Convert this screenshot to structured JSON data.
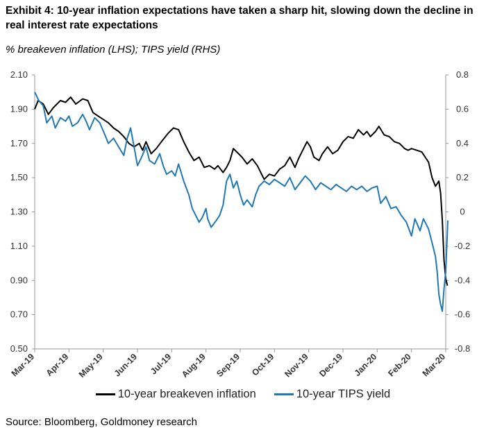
{
  "title": "Exhibit 4: 10-year inflation expectations have taken a sharp hit, slowing down the decline in real interest rate expectations",
  "subtitle": "% breakeven inflation (LHS); TIPS yield (RHS)",
  "source": "Source: Bloomberg, Goldmoney research",
  "chart_data": {
    "type": "line",
    "x_categories": [
      "Mar-19",
      "Apr-19",
      "May-19",
      "Jun-19",
      "Jul-19",
      "Aug-19",
      "Sep-19",
      "Oct-19",
      "Nov-19",
      "Dec-19",
      "Jan-20",
      "Feb-20",
      "Mar-20"
    ],
    "y_left": {
      "ylim": [
        0.5,
        2.1
      ],
      "ticks": [
        "2.10",
        "1.90",
        "1.70",
        "1.50",
        "1.30",
        "1.10",
        "0.90",
        "0.70",
        "0.50"
      ]
    },
    "y_right": {
      "ylim": [
        -0.8,
        0.8
      ],
      "ticks": [
        "0.8",
        "0.6",
        "0.4",
        "0.2",
        "0",
        "-0.2",
        "-0.4",
        "-0.6",
        "-0.8"
      ]
    },
    "series": [
      {
        "name": "10-year breakeven inflation",
        "axis": "left",
        "color": "#000000",
        "points": [
          [
            0,
            1.9
          ],
          [
            0.1,
            1.95
          ],
          [
            0.25,
            1.93
          ],
          [
            0.4,
            1.87
          ],
          [
            0.55,
            1.91
          ],
          [
            0.75,
            1.95
          ],
          [
            0.9,
            1.94
          ],
          [
            1.05,
            1.97
          ],
          [
            1.2,
            1.93
          ],
          [
            1.4,
            1.96
          ],
          [
            1.55,
            1.95
          ],
          [
            1.7,
            1.88
          ],
          [
            1.85,
            1.86
          ],
          [
            2.0,
            1.84
          ],
          [
            2.15,
            1.82
          ],
          [
            2.3,
            1.79
          ],
          [
            2.45,
            1.77
          ],
          [
            2.6,
            1.74
          ],
          [
            2.75,
            1.7
          ],
          [
            2.9,
            1.68
          ],
          [
            3.05,
            1.7
          ],
          [
            3.15,
            1.66
          ],
          [
            3.25,
            1.71
          ],
          [
            3.4,
            1.64
          ],
          [
            3.55,
            1.67
          ],
          [
            3.7,
            1.71
          ],
          [
            3.9,
            1.76
          ],
          [
            4.05,
            1.79
          ],
          [
            4.2,
            1.78
          ],
          [
            4.35,
            1.71
          ],
          [
            4.5,
            1.65
          ],
          [
            4.65,
            1.6
          ],
          [
            4.8,
            1.62
          ],
          [
            4.95,
            1.56
          ],
          [
            5.1,
            1.57
          ],
          [
            5.25,
            1.55
          ],
          [
            5.35,
            1.57
          ],
          [
            5.5,
            1.53
          ],
          [
            5.6,
            1.56
          ],
          [
            5.7,
            1.6
          ],
          [
            5.8,
            1.67
          ],
          [
            5.9,
            1.65
          ],
          [
            6.05,
            1.62
          ],
          [
            6.2,
            1.58
          ],
          [
            6.35,
            1.61
          ],
          [
            6.5,
            1.57
          ],
          [
            6.6,
            1.53
          ],
          [
            6.7,
            1.49
          ],
          [
            6.85,
            1.52
          ],
          [
            7.0,
            1.51
          ],
          [
            7.15,
            1.55
          ],
          [
            7.3,
            1.57
          ],
          [
            7.45,
            1.62
          ],
          [
            7.6,
            1.56
          ],
          [
            7.7,
            1.61
          ],
          [
            7.8,
            1.65
          ],
          [
            7.95,
            1.71
          ],
          [
            8.05,
            1.68
          ],
          [
            8.15,
            1.62
          ],
          [
            8.3,
            1.6
          ],
          [
            8.4,
            1.64
          ],
          [
            8.55,
            1.68
          ],
          [
            8.7,
            1.64
          ],
          [
            8.85,
            1.66
          ],
          [
            9.0,
            1.71
          ],
          [
            9.15,
            1.74
          ],
          [
            9.3,
            1.73
          ],
          [
            9.45,
            1.78
          ],
          [
            9.6,
            1.75
          ],
          [
            9.7,
            1.77
          ],
          [
            9.8,
            1.74
          ],
          [
            9.95,
            1.77
          ],
          [
            10.05,
            1.8
          ],
          [
            10.2,
            1.75
          ],
          [
            10.35,
            1.74
          ],
          [
            10.5,
            1.71
          ],
          [
            10.65,
            1.7
          ],
          [
            10.8,
            1.67
          ],
          [
            10.9,
            1.66
          ],
          [
            11.0,
            1.67
          ],
          [
            11.15,
            1.66
          ],
          [
            11.3,
            1.65
          ],
          [
            11.4,
            1.62
          ],
          [
            11.5,
            1.59
          ],
          [
            11.6,
            1.5
          ],
          [
            11.7,
            1.45
          ],
          [
            11.8,
            1.48
          ],
          [
            11.85,
            1.41
          ],
          [
            11.9,
            1.25
          ],
          [
            11.95,
            1.02
          ],
          [
            12.0,
            0.91
          ],
          [
            12.05,
            0.87
          ]
        ]
      },
      {
        "name": "10-year TIPS yield",
        "axis": "right",
        "color": "#1f78b4",
        "points": [
          [
            0,
            0.7
          ],
          [
            0.12,
            0.65
          ],
          [
            0.25,
            0.62
          ],
          [
            0.35,
            0.52
          ],
          [
            0.5,
            0.56
          ],
          [
            0.6,
            0.49
          ],
          [
            0.75,
            0.55
          ],
          [
            0.9,
            0.53
          ],
          [
            1.0,
            0.56
          ],
          [
            1.1,
            0.5
          ],
          [
            1.25,
            0.52
          ],
          [
            1.4,
            0.57
          ],
          [
            1.5,
            0.53
          ],
          [
            1.6,
            0.48
          ],
          [
            1.75,
            0.55
          ],
          [
            1.9,
            0.52
          ],
          [
            2.05,
            0.45
          ],
          [
            2.15,
            0.4
          ],
          [
            2.3,
            0.43
          ],
          [
            2.45,
            0.38
          ],
          [
            2.6,
            0.33
          ],
          [
            2.7,
            0.43
          ],
          [
            2.8,
            0.49
          ],
          [
            2.9,
            0.38
          ],
          [
            3.0,
            0.27
          ],
          [
            3.1,
            0.31
          ],
          [
            3.25,
            0.38
          ],
          [
            3.35,
            0.3
          ],
          [
            3.5,
            0.28
          ],
          [
            3.65,
            0.34
          ],
          [
            3.75,
            0.27
          ],
          [
            3.85,
            0.22
          ],
          [
            4.0,
            0.24
          ],
          [
            4.1,
            0.21
          ],
          [
            4.2,
            0.28
          ],
          [
            4.35,
            0.18
          ],
          [
            4.5,
            0.1
          ],
          [
            4.6,
            0.02
          ],
          [
            4.7,
            -0.02
          ],
          [
            4.8,
            -0.06
          ],
          [
            4.9,
            -0.03
          ],
          [
            5.0,
            0.02
          ],
          [
            5.05,
            -0.04
          ],
          [
            5.15,
            -0.09
          ],
          [
            5.3,
            -0.05
          ],
          [
            5.4,
            -0.02
          ],
          [
            5.5,
            0.04
          ],
          [
            5.6,
            0.18
          ],
          [
            5.7,
            0.22
          ],
          [
            5.8,
            0.14
          ],
          [
            5.9,
            0.18
          ],
          [
            6.0,
            0.1
          ],
          [
            6.1,
            0.04
          ],
          [
            6.2,
            0.07
          ],
          [
            6.35,
            0.03
          ],
          [
            6.45,
            0.1
          ],
          [
            6.55,
            0.15
          ],
          [
            6.7,
            0.18
          ],
          [
            6.85,
            0.16
          ],
          [
            7.0,
            0.19
          ],
          [
            7.15,
            0.17
          ],
          [
            7.3,
            0.15
          ],
          [
            7.45,
            0.2
          ],
          [
            7.6,
            0.13
          ],
          [
            7.75,
            0.17
          ],
          [
            7.9,
            0.21
          ],
          [
            8.05,
            0.18
          ],
          [
            8.2,
            0.13
          ],
          [
            8.35,
            0.17
          ],
          [
            8.5,
            0.15
          ],
          [
            8.65,
            0.13
          ],
          [
            8.8,
            0.16
          ],
          [
            8.95,
            0.14
          ],
          [
            9.1,
            0.12
          ],
          [
            9.25,
            0.15
          ],
          [
            9.4,
            0.13
          ],
          [
            9.55,
            0.15
          ],
          [
            9.7,
            0.12
          ],
          [
            9.85,
            0.14
          ],
          [
            10.0,
            0.15
          ],
          [
            10.1,
            0.05
          ],
          [
            10.25,
            0.09
          ],
          [
            10.4,
            0.02
          ],
          [
            10.55,
            0.03
          ],
          [
            10.7,
            -0.02
          ],
          [
            10.85,
            -0.06
          ],
          [
            11.0,
            -0.14
          ],
          [
            11.1,
            -0.04
          ],
          [
            11.25,
            -0.11
          ],
          [
            11.35,
            -0.04
          ],
          [
            11.5,
            -0.1
          ],
          [
            11.6,
            -0.18
          ],
          [
            11.7,
            -0.26
          ],
          [
            11.75,
            -0.35
          ],
          [
            11.8,
            -0.48
          ],
          [
            11.85,
            -0.54
          ],
          [
            11.9,
            -0.58
          ],
          [
            11.95,
            -0.45
          ],
          [
            12.0,
            -0.35
          ],
          [
            12.03,
            -0.2
          ],
          [
            12.06,
            -0.05
          ]
        ]
      }
    ],
    "grid": false,
    "legend_position": "bottom"
  }
}
